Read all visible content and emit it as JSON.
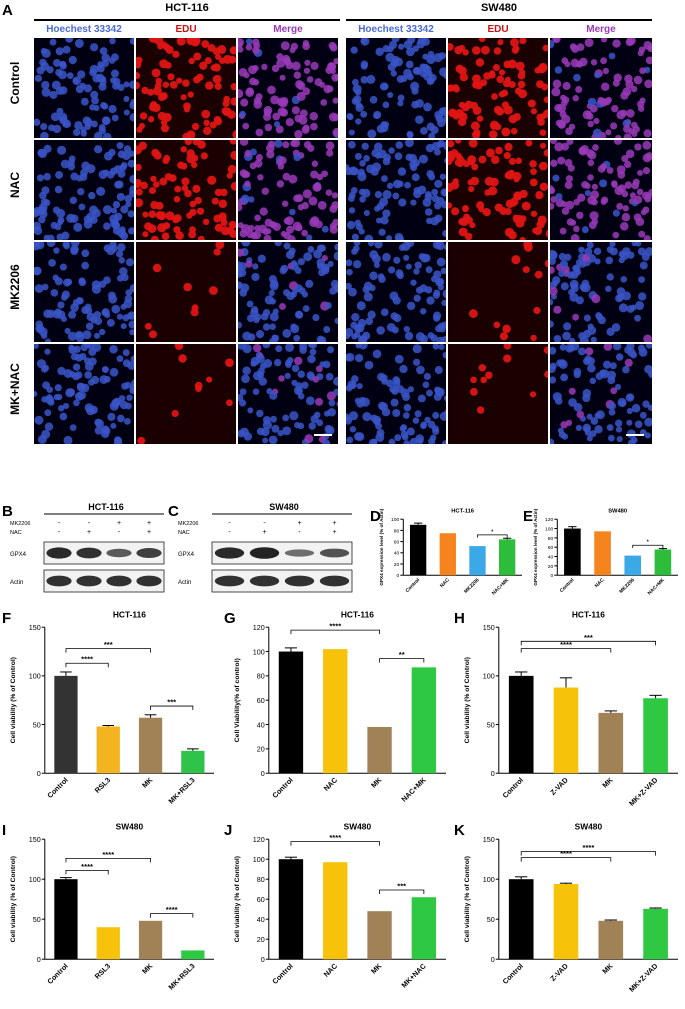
{
  "panel_a": {
    "label": "A",
    "groups": [
      {
        "title": "HCT-116",
        "columns": [
          "Hoechest 33342",
          "EDU",
          "Merge"
        ]
      },
      {
        "title": "SW480",
        "columns": [
          "Hoechest 33342",
          "EDU",
          "Merge"
        ]
      }
    ],
    "rows": [
      "Control",
      "NAC",
      "MK2206",
      "MK+NAC"
    ],
    "column_colors": {
      "hoechst": "#3a55c8",
      "edu": "#cc1111",
      "merge": "#9a3ab8"
    },
    "edu_density": [
      0.9,
      0.9,
      0.08,
      0.14
    ]
  },
  "westerns": [
    {
      "label": "B",
      "title": "HCT-116",
      "treatments": [
        {
          "name": "MK2206",
          "signs": [
            "-",
            "-",
            "+",
            "+"
          ]
        },
        {
          "name": "NAC",
          "signs": [
            "-",
            "+",
            "-",
            "+"
          ]
        }
      ],
      "bands": [
        {
          "name": "GPX4",
          "intensity": [
            0.9,
            0.85,
            0.55,
            0.75
          ]
        },
        {
          "name": "Actin",
          "intensity": [
            0.85,
            0.85,
            0.85,
            0.85
          ]
        }
      ]
    },
    {
      "label": "C",
      "title": "SW480",
      "treatments": [
        {
          "name": "MK2206",
          "signs": [
            "-",
            "-",
            "+",
            "+"
          ]
        },
        {
          "name": "NAC",
          "signs": [
            "-",
            "+",
            "-",
            "+"
          ]
        }
      ],
      "bands": [
        {
          "name": "GPX4",
          "intensity": [
            0.9,
            0.95,
            0.4,
            0.6
          ]
        },
        {
          "name": "Actin",
          "intensity": [
            0.85,
            0.85,
            0.85,
            0.85
          ]
        }
      ]
    }
  ],
  "chart_data": [
    {
      "id": "D",
      "type": "bar",
      "title": "HCT-116",
      "ylabel": "GPX4 expression level (% of Actin)",
      "categories": [
        "Control",
        "NAC",
        "MK2206",
        "NAC+MK"
      ],
      "values": [
        90,
        75,
        52,
        64
      ],
      "errors": [
        3,
        0,
        0,
        2
      ],
      "colors": [
        "#000000",
        "#f5841f",
        "#3ba9e8",
        "#2ebd3a"
      ],
      "ylim": [
        0,
        100
      ],
      "yticks": [
        0,
        20,
        40,
        60,
        80,
        100
      ],
      "sig": [
        {
          "from": 2,
          "to": 3,
          "label": "*"
        }
      ]
    },
    {
      "id": "E",
      "type": "bar",
      "title": "SW480",
      "ylabel": "GPX4 expression level (% of Actin)",
      "categories": [
        "Control",
        "NAC",
        "MK2206",
        "NAC+MK"
      ],
      "values": [
        100,
        94,
        42,
        55
      ],
      "errors": [
        4,
        0,
        0,
        2
      ],
      "colors": [
        "#000000",
        "#f5841f",
        "#3ba9e8",
        "#2ebd3a"
      ],
      "ylim": [
        0,
        120
      ],
      "yticks": [
        0,
        20,
        40,
        60,
        80,
        100,
        120
      ],
      "sig": [
        {
          "from": 2,
          "to": 3,
          "label": "*"
        }
      ]
    },
    {
      "id": "F",
      "type": "bar",
      "title": "HCT-116",
      "ylabel": "Cell viability (% of Control)",
      "categories": [
        "Control",
        "RSL3",
        "MK",
        "MK+RSL3"
      ],
      "values": [
        100,
        48,
        57,
        23
      ],
      "errors": [
        4,
        1,
        3,
        2
      ],
      "colors": [
        "#333333",
        "#f2b41f",
        "#a08256",
        "#2fc34a"
      ],
      "ylim": [
        0,
        150
      ],
      "yticks": [
        0,
        50,
        100,
        150
      ],
      "sig": [
        {
          "from": 0,
          "to": 1,
          "label": "****"
        },
        {
          "from": 0,
          "to": 2,
          "label": "***"
        },
        {
          "from": 2,
          "to": 3,
          "label": "***"
        }
      ]
    },
    {
      "id": "G",
      "type": "bar",
      "title": "HCT-116",
      "ylabel": "Cell Viability(% of control)",
      "categories": [
        "Control",
        "NAC",
        "MK",
        "NAC+MK"
      ],
      "values": [
        100,
        102,
        38,
        87
      ],
      "errors": [
        3,
        0,
        0,
        0
      ],
      "colors": [
        "#000000",
        "#f7c20a",
        "#a08256",
        "#2ec842"
      ],
      "ylim": [
        0,
        120
      ],
      "yticks": [
        0,
        20,
        40,
        60,
        80,
        100,
        120
      ],
      "sig": [
        {
          "from": 0,
          "to": 2,
          "label": "****"
        },
        {
          "from": 2,
          "to": 3,
          "label": "**"
        }
      ]
    },
    {
      "id": "H",
      "type": "bar",
      "title": "HCT-116",
      "ylabel": "Cell viability (% of Control)",
      "categories": [
        "Control",
        "Z-VAD",
        "MK",
        "MK+Z-VAD"
      ],
      "values": [
        100,
        88,
        62,
        77
      ],
      "errors": [
        4,
        10,
        2,
        3
      ],
      "colors": [
        "#000000",
        "#f7c20a",
        "#a08256",
        "#2ec842"
      ],
      "ylim": [
        0,
        150
      ],
      "yticks": [
        0,
        50,
        100,
        150
      ],
      "sig": [
        {
          "from": 0,
          "to": 2,
          "label": "****"
        },
        {
          "from": 0,
          "to": 3,
          "label": "***"
        }
      ]
    },
    {
      "id": "I",
      "type": "bar",
      "title": "SW480",
      "ylabel": "Cell viability (% of Control)",
      "categories": [
        "Control",
        "RSL3",
        "MK",
        "MK+RSL3"
      ],
      "values": [
        100,
        40,
        48,
        11
      ],
      "errors": [
        2,
        0,
        0,
        0
      ],
      "colors": [
        "#000000",
        "#f7c20a",
        "#a08256",
        "#2ec842"
      ],
      "ylim": [
        0,
        150
      ],
      "yticks": [
        0,
        50,
        100,
        150
      ],
      "sig": [
        {
          "from": 0,
          "to": 1,
          "label": "****"
        },
        {
          "from": 0,
          "to": 2,
          "label": "****"
        },
        {
          "from": 2,
          "to": 3,
          "label": "****"
        }
      ]
    },
    {
      "id": "J",
      "type": "bar",
      "title": "SW480",
      "ylabel": "Cell viability (% of Control)",
      "categories": [
        "Control",
        "NAC",
        "MK",
        "MK+NAC"
      ],
      "values": [
        100,
        97,
        48,
        62
      ],
      "errors": [
        2,
        0,
        0,
        0
      ],
      "colors": [
        "#000000",
        "#f7c20a",
        "#a08256",
        "#2ec842"
      ],
      "ylim": [
        0,
        120
      ],
      "yticks": [
        0,
        20,
        40,
        60,
        80,
        100,
        120
      ],
      "sig": [
        {
          "from": 0,
          "to": 2,
          "label": "****"
        },
        {
          "from": 2,
          "to": 3,
          "label": "***"
        }
      ]
    },
    {
      "id": "K",
      "type": "bar",
      "title": "SW480",
      "ylabel": "Cell viability (% of Control)",
      "categories": [
        "Control",
        "Z-VAD",
        "MK",
        "MK+Z-VAD"
      ],
      "values": [
        100,
        94,
        48,
        63
      ],
      "errors": [
        3,
        1,
        1,
        1
      ],
      "colors": [
        "#000000",
        "#f7c20a",
        "#a08256",
        "#2ec842"
      ],
      "ylim": [
        0,
        150
      ],
      "yticks": [
        0,
        50,
        100,
        150
      ],
      "sig": [
        {
          "from": 0,
          "to": 2,
          "label": "****"
        },
        {
          "from": 0,
          "to": 3,
          "label": "****"
        }
      ]
    }
  ]
}
